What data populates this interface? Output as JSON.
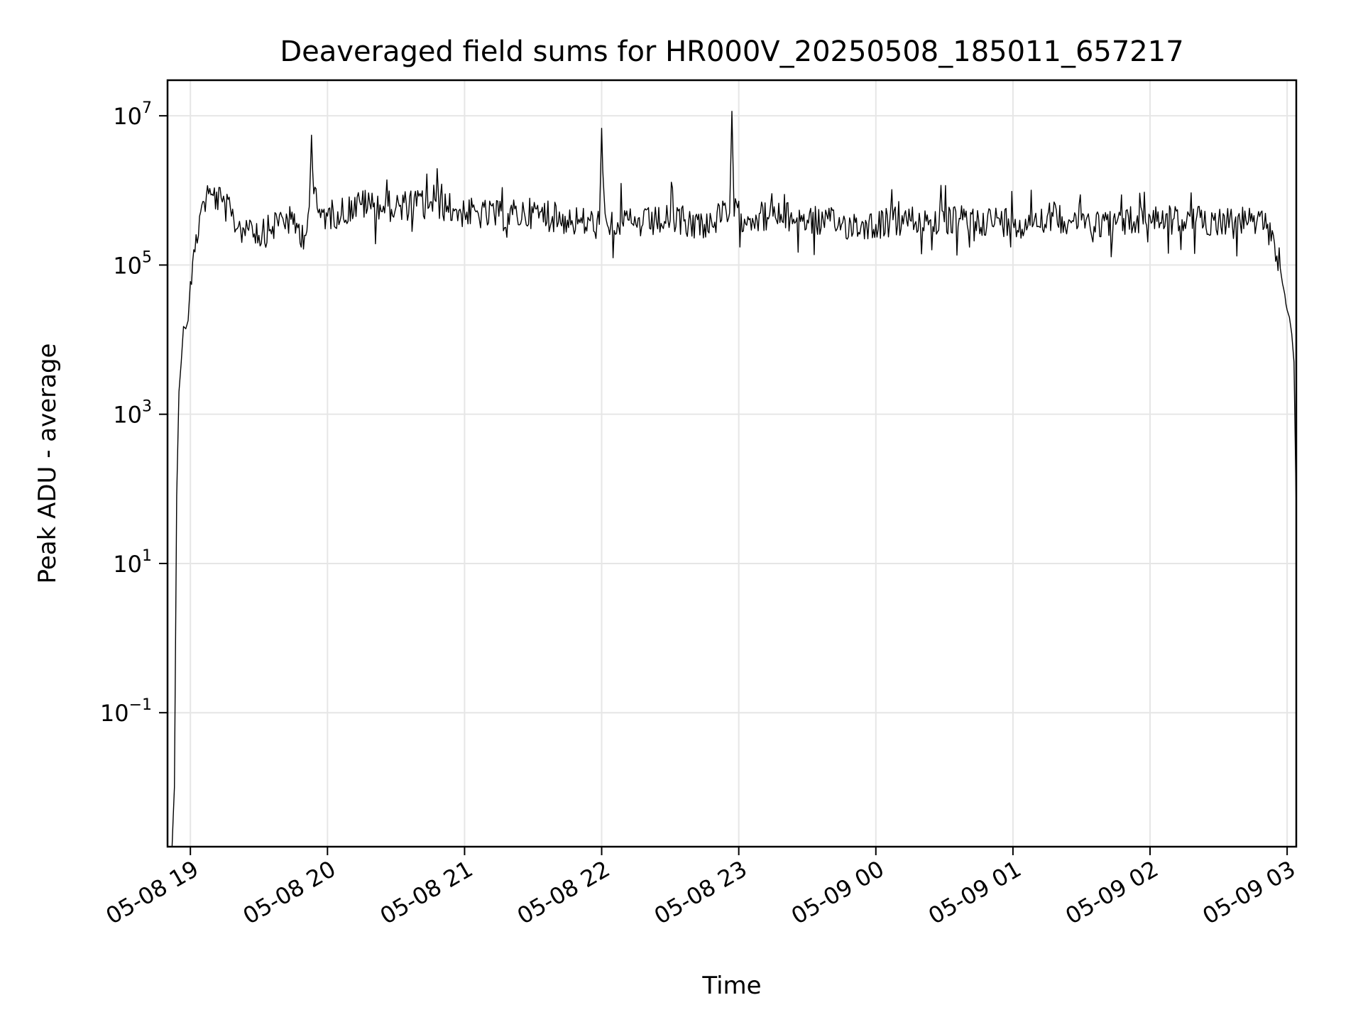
{
  "chart_data": {
    "type": "line",
    "title": "Deaveraged field sums for HR000V_20250508_185011_657217",
    "xlabel": "Time",
    "ylabel": "Peak ADU - average",
    "yscale": "log",
    "grid": true,
    "xlim": [
      "2025-05-08 18:50",
      "2025-05-09 03:04"
    ],
    "ylim": [
      0.0016,
      30000000
    ],
    "x_ticks": [
      {
        "value": "2025-05-08 19:00",
        "label": "05-08 19"
      },
      {
        "value": "2025-05-08 20:00",
        "label": "05-08 20"
      },
      {
        "value": "2025-05-08 21:00",
        "label": "05-08 21"
      },
      {
        "value": "2025-05-08 22:00",
        "label": "05-08 22"
      },
      {
        "value": "2025-05-08 23:00",
        "label": "05-08 23"
      },
      {
        "value": "2025-05-09 00:00",
        "label": "05-09 00"
      },
      {
        "value": "2025-05-09 01:00",
        "label": "05-09 01"
      },
      {
        "value": "2025-05-09 02:00",
        "label": "05-09 02"
      },
      {
        "value": "2025-05-09 03:00",
        "label": "05-09 03"
      }
    ],
    "y_ticks": [
      {
        "value": 10000000,
        "base": "10",
        "exp": "7"
      },
      {
        "value": 100000,
        "base": "10",
        "exp": "5"
      },
      {
        "value": 1000,
        "base": "10",
        "exp": "3"
      },
      {
        "value": 10,
        "base": "10",
        "exp": "1"
      },
      {
        "value": 0.1,
        "base": "10",
        "exp": "−1"
      }
    ],
    "line_color": "#000000",
    "series": [
      {
        "x": [
          "2025-05-08 18:52",
          "2025-05-08 18:53",
          "2025-05-08 18:54",
          "2025-05-08 18:55",
          "2025-05-08 18:56",
          "2025-05-08 18:57",
          "2025-05-08 18:58",
          "2025-05-08 18:59",
          "2025-05-08 19:00",
          "2025-05-08 19:02",
          "2025-05-08 19:04",
          "2025-05-08 19:06",
          "2025-05-08 19:08",
          "2025-05-08 19:10",
          "2025-05-08 19:14",
          "2025-05-08 19:18",
          "2025-05-08 19:22",
          "2025-05-08 19:26",
          "2025-05-08 19:30",
          "2025-05-08 19:35",
          "2025-05-08 19:40",
          "2025-05-08 19:45",
          "2025-05-08 19:50",
          "2025-05-08 19:52",
          "2025-05-08 19:53",
          "2025-05-08 19:54",
          "2025-05-08 19:56",
          "2025-05-08 20:00",
          "2025-05-08 20:15",
          "2025-05-08 20:30",
          "2025-05-08 20:45",
          "2025-05-08 21:00",
          "2025-05-08 21:15",
          "2025-05-08 21:30",
          "2025-05-08 21:45",
          "2025-05-08 21:59",
          "2025-05-08 22:00",
          "2025-05-08 22:01",
          "2025-05-08 22:02",
          "2025-05-08 22:15",
          "2025-05-08 22:30",
          "2025-05-08 22:45",
          "2025-05-08 22:56",
          "2025-05-08 22:57",
          "2025-05-08 22:58",
          "2025-05-08 23:15",
          "2025-05-08 23:30",
          "2025-05-08 23:45",
          "2025-05-09 00:00",
          "2025-05-09 00:15",
          "2025-05-09 00:30",
          "2025-05-09 00:45",
          "2025-05-09 01:00",
          "2025-05-09 01:15",
          "2025-05-09 01:30",
          "2025-05-09 01:45",
          "2025-05-09 02:00",
          "2025-05-09 02:15",
          "2025-05-09 02:30",
          "2025-05-09 02:45",
          "2025-05-09 02:50",
          "2025-05-09 02:54",
          "2025-05-09 02:57",
          "2025-05-09 02:59",
          "2025-05-09 03:00",
          "2025-05-09 03:01",
          "2025-05-09 03:02",
          "2025-05-09 03:03",
          "2025-05-09 03:04"
        ],
        "y": [
          0.0016,
          0.01,
          80,
          2000,
          5000,
          15000,
          14000,
          18000,
          60000,
          150000,
          450000,
          700000,
          900000,
          850000,
          700000,
          450000,
          300000,
          400000,
          250000,
          300000,
          450000,
          350000,
          250000,
          600000,
          5500000,
          900000,
          500000,
          450000,
          650000,
          600000,
          700000,
          500000,
          450000,
          500000,
          400000,
          350000,
          6800000,
          900000,
          400000,
          350000,
          400000,
          350000,
          500000,
          11500000,
          450000,
          450000,
          400000,
          350000,
          350000,
          400000,
          380000,
          400000,
          380000,
          450000,
          400000,
          350000,
          450000,
          380000,
          400000,
          380000,
          320000,
          250000,
          90000,
          40000,
          25000,
          20000,
          12000,
          5000,
          50
        ]
      }
    ]
  }
}
